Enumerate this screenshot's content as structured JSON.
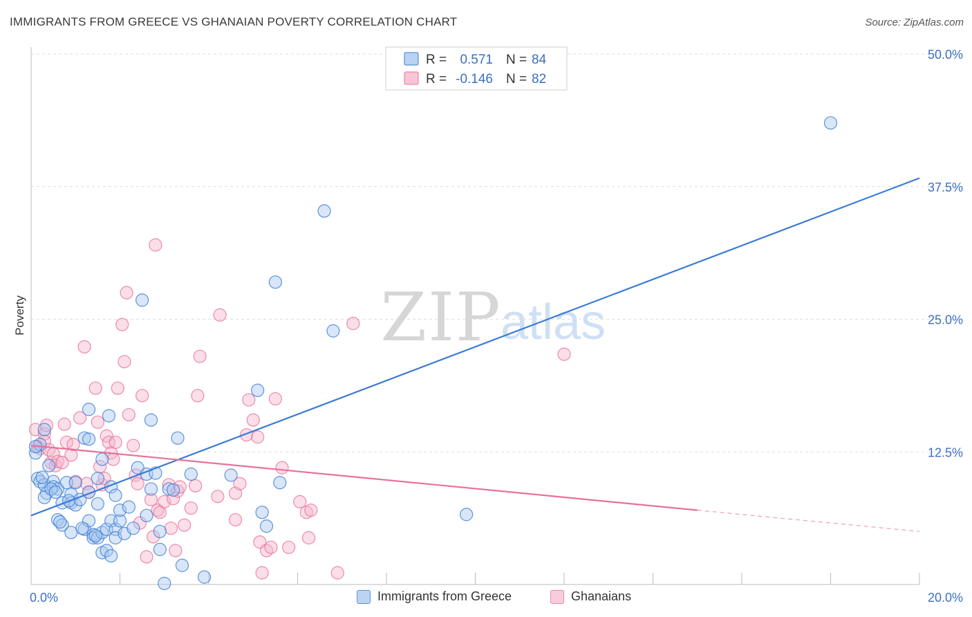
{
  "header": {
    "title": "IMMIGRANTS FROM GREECE VS GHANAIAN POVERTY CORRELATION CHART",
    "source": "Source: ZipAtlas.com"
  },
  "watermark": {
    "zip": "ZIP",
    "atlas": "atlas"
  },
  "colors": {
    "blue": "#3a7bd5",
    "blue_fill": "#a9c8ef",
    "pink": "#e8709a",
    "pink_fill": "#f5b6cb",
    "value_text": "#3a6fc4",
    "grid": "#dddddd"
  },
  "legend": {
    "r_label": "R =",
    "n_label": "N =",
    "rows": [
      {
        "series": "blue",
        "r": "0.571",
        "n": "84"
      },
      {
        "series": "pink",
        "r": "-0.146",
        "n": "82"
      }
    ]
  },
  "bottom_legend": [
    {
      "series": "blue",
      "label": "Immigrants from Greece"
    },
    {
      "series": "pink",
      "label": "Ghanaians"
    }
  ],
  "chart_data": {
    "type": "scatter",
    "title": "IMMIGRANTS FROM GREECE VS GHANAIAN POVERTY CORRELATION CHART",
    "xlabel": "",
    "ylabel": "Poverty",
    "xlim": [
      0,
      20
    ],
    "ylim": [
      0,
      50
    ],
    "x_tick_labels": [
      {
        "value": 0,
        "label": "0.0%"
      },
      {
        "value": 20,
        "label": "20.0%"
      }
    ],
    "y_tick_labels": [
      {
        "value": 12.5,
        "label": "12.5%"
      },
      {
        "value": 25,
        "label": "25.0%"
      },
      {
        "value": 37.5,
        "label": "37.5%"
      },
      {
        "value": 50,
        "label": "50.0%"
      }
    ],
    "x_minor_ticks": [
      2,
      4,
      6,
      8,
      10,
      12,
      14,
      16,
      18,
      20
    ],
    "series": [
      {
        "name": "Immigrants from Greece",
        "color": "blue",
        "R": 0.571,
        "N": 84,
        "trendline": {
          "x0": 0,
          "y0": 6.5,
          "x1": 20,
          "y1": 38.3
        },
        "points": [
          [
            0.1,
            12.4
          ],
          [
            0.2,
            13.2
          ],
          [
            0.3,
            14.6
          ],
          [
            0.15,
            10.0
          ],
          [
            0.2,
            9.7
          ],
          [
            0.3,
            9.4
          ],
          [
            0.35,
            8.6
          ],
          [
            0.3,
            8.2
          ],
          [
            0.4,
            11.2
          ],
          [
            0.5,
            9.7
          ],
          [
            0.5,
            9.2
          ],
          [
            0.6,
            9.0
          ],
          [
            0.6,
            6.1
          ],
          [
            0.7,
            7.7
          ],
          [
            0.7,
            5.6
          ],
          [
            0.8,
            9.6
          ],
          [
            0.9,
            4.9
          ],
          [
            0.9,
            8.5
          ],
          [
            0.9,
            7.7
          ],
          [
            1.0,
            9.6
          ],
          [
            1.0,
            7.5
          ],
          [
            1.1,
            8.0
          ],
          [
            1.2,
            13.8
          ],
          [
            1.2,
            5.2
          ],
          [
            1.3,
            16.5
          ],
          [
            1.3,
            13.7
          ],
          [
            1.3,
            8.7
          ],
          [
            1.3,
            6.0
          ],
          [
            1.4,
            4.7
          ],
          [
            1.4,
            4.4
          ],
          [
            1.5,
            10.0
          ],
          [
            1.5,
            7.6
          ],
          [
            1.5,
            4.4
          ],
          [
            1.6,
            11.8
          ],
          [
            1.6,
            4.9
          ],
          [
            1.6,
            3.0
          ],
          [
            1.7,
            5.2
          ],
          [
            1.7,
            3.2
          ],
          [
            1.75,
            15.9
          ],
          [
            1.8,
            9.2
          ],
          [
            1.8,
            6.0
          ],
          [
            1.8,
            2.7
          ],
          [
            1.9,
            8.4
          ],
          [
            1.9,
            5.2
          ],
          [
            1.9,
            4.4
          ],
          [
            2.0,
            6.0
          ],
          [
            2.0,
            7.0
          ],
          [
            2.1,
            4.8
          ],
          [
            2.2,
            7.3
          ],
          [
            2.4,
            11.0
          ],
          [
            2.5,
            26.8
          ],
          [
            2.6,
            10.4
          ],
          [
            2.6,
            6.5
          ],
          [
            2.7,
            15.5
          ],
          [
            2.7,
            9.0
          ],
          [
            2.8,
            10.5
          ],
          [
            2.9,
            5.0
          ],
          [
            2.9,
            3.3
          ],
          [
            3.0,
            0.1
          ],
          [
            3.1,
            9.0
          ],
          [
            3.3,
            13.8
          ],
          [
            3.4,
            1.8
          ],
          [
            3.6,
            10.4
          ],
          [
            3.9,
            0.7
          ],
          [
            4.5,
            10.3
          ],
          [
            5.1,
            18.3
          ],
          [
            5.2,
            6.8
          ],
          [
            5.3,
            5.5
          ],
          [
            5.5,
            28.5
          ],
          [
            5.6,
            9.6
          ],
          [
            6.6,
            35.2
          ],
          [
            6.8,
            23.9
          ],
          [
            9.8,
            6.6
          ],
          [
            18.0,
            43.5
          ],
          [
            0.1,
            13.0
          ],
          [
            0.25,
            10.1
          ],
          [
            0.45,
            9.0
          ],
          [
            0.55,
            8.7
          ],
          [
            0.65,
            5.9
          ],
          [
            0.85,
            7.9
          ],
          [
            1.15,
            5.3
          ],
          [
            1.45,
            4.6
          ],
          [
            2.3,
            5.3
          ],
          [
            3.2,
            8.9
          ]
        ]
      },
      {
        "name": "Ghanaians",
        "color": "pink",
        "R": -0.146,
        "N": 82,
        "trendline": {
          "x0": 0,
          "y0": 13.1,
          "x1": 15.0,
          "y1": 7.0,
          "dash_x1": 20,
          "dash_y1": 5.0
        },
        "points": [
          [
            0.1,
            14.6
          ],
          [
            0.15,
            13.0
          ],
          [
            0.2,
            12.8
          ],
          [
            0.3,
            14.2
          ],
          [
            0.3,
            13.5
          ],
          [
            0.35,
            15.0
          ],
          [
            0.4,
            12.7
          ],
          [
            0.45,
            11.5
          ],
          [
            0.5,
            12.3
          ],
          [
            0.55,
            11.2
          ],
          [
            0.6,
            11.6
          ],
          [
            0.7,
            11.5
          ],
          [
            0.75,
            15.1
          ],
          [
            0.8,
            13.4
          ],
          [
            0.9,
            12.2
          ],
          [
            0.95,
            13.2
          ],
          [
            1.0,
            9.7
          ],
          [
            1.1,
            15.7
          ],
          [
            1.2,
            22.4
          ],
          [
            1.25,
            9.5
          ],
          [
            1.3,
            8.7
          ],
          [
            1.45,
            18.5
          ],
          [
            1.5,
            15.3
          ],
          [
            1.55,
            11.1
          ],
          [
            1.6,
            9.4
          ],
          [
            1.65,
            10.0
          ],
          [
            1.7,
            14.0
          ],
          [
            1.75,
            13.4
          ],
          [
            1.8,
            12.4
          ],
          [
            1.85,
            11.8
          ],
          [
            1.9,
            13.4
          ],
          [
            1.95,
            18.5
          ],
          [
            2.05,
            24.5
          ],
          [
            2.1,
            21.0
          ],
          [
            2.15,
            27.5
          ],
          [
            2.2,
            16.0
          ],
          [
            2.3,
            13.1
          ],
          [
            2.35,
            10.3
          ],
          [
            2.4,
            9.5
          ],
          [
            2.45,
            5.8
          ],
          [
            2.5,
            17.8
          ],
          [
            2.6,
            2.6
          ],
          [
            2.7,
            8.0
          ],
          [
            2.75,
            4.5
          ],
          [
            2.8,
            32.0
          ],
          [
            2.85,
            7.0
          ],
          [
            2.9,
            6.8
          ],
          [
            3.0,
            7.8
          ],
          [
            3.1,
            9.4
          ],
          [
            3.15,
            5.3
          ],
          [
            3.2,
            8.1
          ],
          [
            3.25,
            3.2
          ],
          [
            3.3,
            8.8
          ],
          [
            3.35,
            9.2
          ],
          [
            3.45,
            5.6
          ],
          [
            3.6,
            7.2
          ],
          [
            3.7,
            9.3
          ],
          [
            3.75,
            17.8
          ],
          [
            3.8,
            21.5
          ],
          [
            4.2,
            8.3
          ],
          [
            4.25,
            25.4
          ],
          [
            4.6,
            6.1
          ],
          [
            4.6,
            8.6
          ],
          [
            4.7,
            9.5
          ],
          [
            4.85,
            14.1
          ],
          [
            4.9,
            17.4
          ],
          [
            5.0,
            15.5
          ],
          [
            5.1,
            13.9
          ],
          [
            5.15,
            4.0
          ],
          [
            5.3,
            3.2
          ],
          [
            5.4,
            3.5
          ],
          [
            5.5,
            17.5
          ],
          [
            5.65,
            11.0
          ],
          [
            5.8,
            3.5
          ],
          [
            6.05,
            7.8
          ],
          [
            6.2,
            6.8
          ],
          [
            6.25,
            4.4
          ],
          [
            6.3,
            7.0
          ],
          [
            6.9,
            1.1
          ],
          [
            7.25,
            24.6
          ],
          [
            12.0,
            21.7
          ],
          [
            5.2,
            1.1
          ]
        ]
      }
    ]
  }
}
